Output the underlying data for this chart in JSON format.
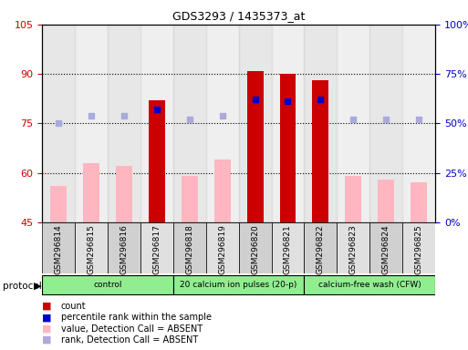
{
  "title": "GDS3293 / 1435373_at",
  "samples": [
    "GSM296814",
    "GSM296815",
    "GSM296816",
    "GSM296817",
    "GSM296818",
    "GSM296819",
    "GSM296820",
    "GSM296821",
    "GSM296822",
    "GSM296823",
    "GSM296824",
    "GSM296825"
  ],
  "count_values": [
    null,
    null,
    null,
    82,
    null,
    null,
    91,
    90,
    88,
    null,
    null,
    null
  ],
  "value_absent": [
    56,
    63,
    62,
    null,
    59,
    64,
    null,
    null,
    null,
    59,
    58,
    57
  ],
  "rank_present": [
    null,
    null,
    null,
    57,
    null,
    null,
    62,
    61,
    62,
    null,
    null,
    null
  ],
  "rank_absent": [
    50,
    54,
    54,
    null,
    52,
    54,
    null,
    null,
    null,
    52,
    52,
    52
  ],
  "ylim_left": [
    45,
    105
  ],
  "ylim_right": [
    0,
    100
  ],
  "yticks_left": [
    45,
    60,
    75,
    90,
    105
  ],
  "yticks_right": [
    0,
    25,
    50,
    75,
    100
  ],
  "ytick_labels_left": [
    "45",
    "60",
    "75",
    "90",
    "105"
  ],
  "ytick_labels_right": [
    "0%",
    "25%",
    "50%",
    "75%",
    "100%"
  ],
  "color_count": "#cc0000",
  "color_value_absent": "#ffb6c1",
  "color_rank_present": "#0000cc",
  "color_rank_absent": "#aaaadd",
  "bg_color": "#ffffff",
  "label_color_left": "#cc0000",
  "label_color_right": "#0000cc",
  "protocol_groups": [
    {
      "label": "control",
      "start": 0,
      "end": 3
    },
    {
      "label": "20 calcium ion pulses (20-p)",
      "start": 4,
      "end": 7
    },
    {
      "label": "calcium-free wash (CFW)",
      "start": 8,
      "end": 11
    }
  ],
  "protocol_color": "#90ee90",
  "col_bg_even": "#d0d0d0",
  "col_bg_odd": "#e0e0e0"
}
